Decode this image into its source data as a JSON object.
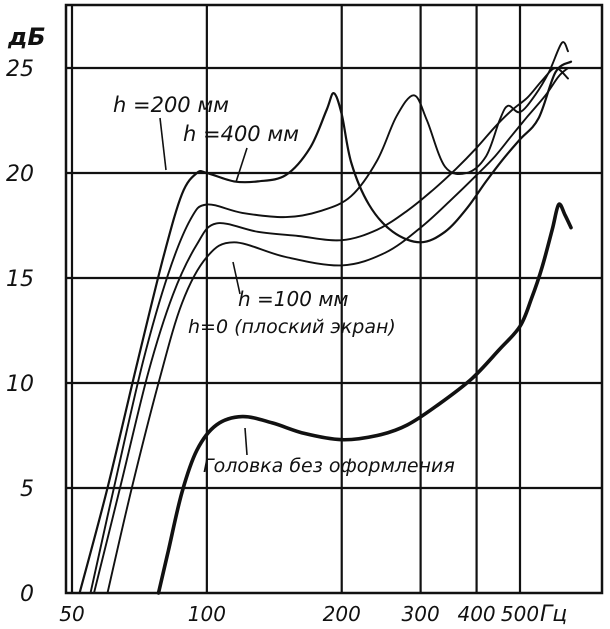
{
  "chart_data": {
    "type": "line",
    "title": "",
    "xlabel": "Гц",
    "ylabel": "дБ",
    "x_scale": "log",
    "xlim": [
      45,
      650
    ],
    "ylim": [
      0,
      28
    ],
    "x_ticks": [
      50,
      100,
      200,
      300,
      400,
      500
    ],
    "x_tick_labels": [
      "50",
      "100",
      "200",
      "300",
      "400",
      "500"
    ],
    "y_ticks": [
      0,
      5,
      10,
      15,
      20,
      25
    ],
    "y_tick_labels": [
      "0",
      "5",
      "10",
      "15",
      "20",
      "25"
    ],
    "grid": true,
    "series": [
      {
        "name": "h = 200 мм",
        "label_text": "h =200 мм",
        "stroke": "#111111",
        "weight": 2.2,
        "points": [
          [
            52,
            0
          ],
          [
            60,
            5
          ],
          [
            70,
            11
          ],
          [
            80,
            16
          ],
          [
            88,
            19
          ],
          [
            95,
            20
          ],
          [
            100,
            20
          ],
          [
            115,
            19.6
          ],
          [
            130,
            19.6
          ],
          [
            150,
            19.9
          ],
          [
            170,
            21.2
          ],
          [
            185,
            23
          ],
          [
            192,
            23.8
          ],
          [
            200,
            22.8
          ],
          [
            210,
            20.5
          ],
          [
            230,
            18.5
          ],
          [
            260,
            17.2
          ],
          [
            300,
            16.7
          ],
          [
            340,
            17.2
          ],
          [
            380,
            18.3
          ],
          [
            420,
            19.6
          ],
          [
            460,
            20.7
          ],
          [
            500,
            21.6
          ],
          [
            550,
            22.6
          ],
          [
            600,
            24.8
          ],
          [
            650,
            25.3
          ]
        ]
      },
      {
        "name": "h = 400 мм",
        "label_text": "h =400 мм",
        "stroke": "#111111",
        "weight": 1.9,
        "points": [
          [
            55,
            0
          ],
          [
            62,
            5
          ],
          [
            72,
            11
          ],
          [
            82,
            15.2
          ],
          [
            92,
            17.8
          ],
          [
            100,
            18.5
          ],
          [
            120,
            18.1
          ],
          [
            150,
            17.9
          ],
          [
            180,
            18.2
          ],
          [
            210,
            18.9
          ],
          [
            240,
            20.6
          ],
          [
            265,
            22.7
          ],
          [
            290,
            23.7
          ],
          [
            310,
            22.5
          ],
          [
            340,
            20.3
          ],
          [
            380,
            20
          ],
          [
            420,
            20.8
          ],
          [
            450,
            22.5
          ],
          [
            470,
            23.2
          ],
          [
            500,
            22.9
          ],
          [
            540,
            23.7
          ],
          [
            580,
            24.8
          ],
          [
            620,
            26.2
          ],
          [
            640,
            25.8
          ]
        ]
      },
      {
        "name": "h = 100 мм",
        "label_text": "h =100 мм",
        "stroke": "#111111",
        "weight": 1.9,
        "points": [
          [
            56,
            0
          ],
          [
            64,
            5
          ],
          [
            74,
            10.5
          ],
          [
            84,
            14.2
          ],
          [
            95,
            16.6
          ],
          [
            105,
            17.6
          ],
          [
            130,
            17.2
          ],
          [
            160,
            17
          ],
          [
            200,
            16.8
          ],
          [
            240,
            17.3
          ],
          [
            280,
            18.2
          ],
          [
            320,
            19.2
          ],
          [
            360,
            20.2
          ],
          [
            400,
            21.2
          ],
          [
            440,
            22.2
          ],
          [
            480,
            23
          ],
          [
            520,
            23.6
          ],
          [
            560,
            24.4
          ],
          [
            600,
            25
          ],
          [
            640,
            24.5
          ]
        ]
      },
      {
        "name": "h = 0 (плоский экран)",
        "label_text": "h=0 (плоский экран)",
        "stroke": "#111111",
        "weight": 1.9,
        "points": [
          [
            60,
            0
          ],
          [
            68,
            5
          ],
          [
            78,
            10
          ],
          [
            88,
            13.8
          ],
          [
            100,
            16
          ],
          [
            115,
            16.7
          ],
          [
            150,
            16
          ],
          [
            200,
            15.6
          ],
          [
            250,
            16.2
          ],
          [
            300,
            17.4
          ],
          [
            350,
            18.7
          ],
          [
            400,
            19.9
          ],
          [
            440,
            20.8
          ],
          [
            480,
            21.8
          ],
          [
            520,
            22.7
          ],
          [
            570,
            23.7
          ],
          [
            610,
            24.6
          ],
          [
            640,
            25
          ]
        ]
      },
      {
        "name": "Головка без оформления",
        "label_text": "Головка без оформления",
        "stroke": "#111111",
        "weight": 3.6,
        "points": [
          [
            78,
            0
          ],
          [
            82,
            2
          ],
          [
            88,
            4.8
          ],
          [
            95,
            6.8
          ],
          [
            105,
            8
          ],
          [
            120,
            8.4
          ],
          [
            140,
            8.1
          ],
          [
            165,
            7.6
          ],
          [
            200,
            7.3
          ],
          [
            240,
            7.5
          ],
          [
            280,
            8
          ],
          [
            330,
            9
          ],
          [
            390,
            10.2
          ],
          [
            450,
            11.6
          ],
          [
            500,
            12.7
          ],
          [
            530,
            14
          ],
          [
            560,
            15.5
          ],
          [
            590,
            17.3
          ],
          [
            610,
            18.5
          ],
          [
            630,
            18
          ],
          [
            650,
            17.4
          ]
        ]
      }
    ]
  }
}
